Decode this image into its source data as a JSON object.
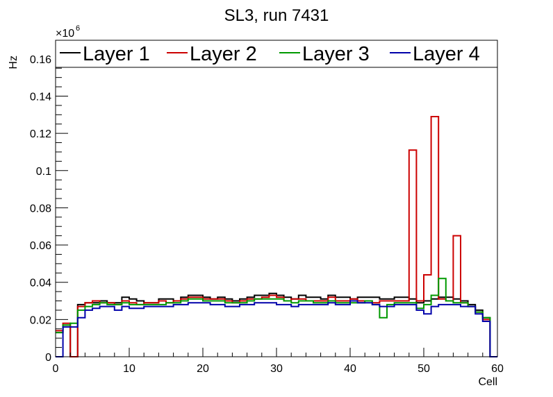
{
  "chart_data": {
    "type": "line",
    "title": "SL3, run 7431",
    "xlabel": "Cell",
    "ylabel": "Hz",
    "y_multiplier_label": "×10",
    "y_multiplier_exponent": "6",
    "xlim": [
      0,
      60
    ],
    "ylim": [
      0,
      0.17
    ],
    "x_ticks": [
      0,
      10,
      20,
      30,
      40,
      50,
      60
    ],
    "x_tick_labels": [
      "0",
      "10",
      "20",
      "30",
      "40",
      "50",
      "60"
    ],
    "y_ticks": [
      0,
      0.02,
      0.04,
      0.06,
      0.08,
      0.1,
      0.12,
      0.14,
      0.16
    ],
    "y_tick_labels": [
      "0",
      "0.02",
      "0.04",
      "0.06",
      "0.08",
      "0.1",
      "0.12",
      "0.14",
      "0.16"
    ],
    "grid": false,
    "legend_position": "top",
    "bin_edges_start": 0,
    "bin_width": 1,
    "series": [
      {
        "name": "Layer 1",
        "color": "#000000",
        "values": [
          0.013,
          0.017,
          0,
          0.028,
          0.029,
          0.029,
          0.03,
          0.029,
          0.029,
          0.032,
          0.031,
          0.03,
          0.029,
          0.029,
          0.031,
          0.031,
          0.03,
          0.032,
          0.033,
          0.033,
          0.032,
          0.031,
          0.032,
          0.031,
          0.03,
          0.031,
          0.032,
          0.033,
          0.033,
          0.034,
          0.033,
          0.032,
          0.031,
          0.033,
          0.032,
          0.032,
          0.031,
          0.033,
          0.032,
          0.032,
          0.031,
          0.032,
          0.032,
          0.032,
          0.031,
          0.031,
          0.032,
          0.032,
          0.031,
          0.029,
          0.03,
          0.031,
          0.032,
          0.032,
          0.031,
          0.03,
          0.028,
          0.025,
          0.021,
          0
        ]
      },
      {
        "name": "Layer 2",
        "color": "#cc0000",
        "values": [
          0.014,
          0.018,
          0,
          0.027,
          0.029,
          0.03,
          0.029,
          0.029,
          0.028,
          0.03,
          0.029,
          0.028,
          0.029,
          0.029,
          0.03,
          0.029,
          0.03,
          0.031,
          0.032,
          0.032,
          0.031,
          0.031,
          0.031,
          0.03,
          0.029,
          0.03,
          0.031,
          0.031,
          0.032,
          0.033,
          0.032,
          0.03,
          0.031,
          0.031,
          0.03,
          0.03,
          0.03,
          0.032,
          0.03,
          0.03,
          0.031,
          0.03,
          0.03,
          0.029,
          0.03,
          0.03,
          0.03,
          0.03,
          0.111,
          0.03,
          0.044,
          0.129,
          0.031,
          0.03,
          0.065,
          0.029,
          0.027,
          0.024,
          0.02,
          0
        ]
      },
      {
        "name": "Layer 3",
        "color": "#009900",
        "values": [
          0.013,
          0.017,
          0.018,
          0.025,
          0.027,
          0.028,
          0.029,
          0.028,
          0.028,
          0.029,
          0.028,
          0.028,
          0.028,
          0.028,
          0.028,
          0.029,
          0.029,
          0.03,
          0.031,
          0.031,
          0.03,
          0.03,
          0.03,
          0.029,
          0.029,
          0.029,
          0.03,
          0.031,
          0.031,
          0.031,
          0.031,
          0.03,
          0.029,
          0.03,
          0.03,
          0.029,
          0.029,
          0.03,
          0.029,
          0.029,
          0.029,
          0.029,
          0.03,
          0.028,
          0.021,
          0.028,
          0.029,
          0.029,
          0.029,
          0.026,
          0.028,
          0.033,
          0.042,
          0.03,
          0.029,
          0.029,
          0.027,
          0.024,
          0.021,
          0
        ]
      },
      {
        "name": "Layer 4",
        "color": "#0000aa",
        "values": [
          0,
          0.016,
          0.016,
          0.021,
          0.025,
          0.026,
          0.027,
          0.027,
          0.025,
          0.027,
          0.026,
          0.026,
          0.027,
          0.027,
          0.027,
          0.027,
          0.028,
          0.028,
          0.029,
          0.029,
          0.029,
          0.028,
          0.028,
          0.027,
          0.027,
          0.028,
          0.028,
          0.029,
          0.029,
          0.029,
          0.028,
          0.028,
          0.027,
          0.028,
          0.028,
          0.028,
          0.028,
          0.029,
          0.028,
          0.028,
          0.03,
          0.029,
          0.029,
          0.028,
          0.027,
          0.027,
          0.028,
          0.028,
          0.028,
          0.025,
          0.023,
          0.027,
          0.028,
          0.028,
          0.028,
          0.027,
          0.027,
          0.023,
          0.019,
          0
        ]
      }
    ]
  }
}
